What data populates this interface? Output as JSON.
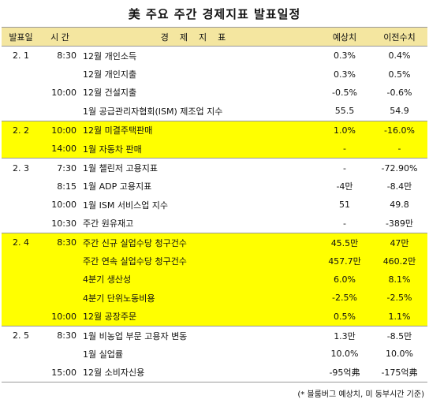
{
  "title": "美 주요 주간 경제지표 발표일정",
  "headers": {
    "date": "발표일",
    "time": "시  간",
    "indicator": "경제지표",
    "expected": "예상치",
    "previous": "이전수치"
  },
  "rows": [
    {
      "date": "2. 1",
      "time": "8:30",
      "indicator": "12월 개인소득",
      "expected": "0.3%",
      "previous": "0.4%",
      "highlight": false,
      "group_start": true
    },
    {
      "date": "",
      "time": "",
      "indicator": "12월 개인지출",
      "expected": "0.3%",
      "previous": "0.5%",
      "highlight": false,
      "group_start": false
    },
    {
      "date": "",
      "time": "10:00",
      "indicator": "12월 건설지출",
      "expected": "-0.5%",
      "previous": "-0.6%",
      "highlight": false,
      "group_start": false
    },
    {
      "date": "",
      "time": "",
      "indicator": "1월 공급관리자협회(ISM) 제조업 지수",
      "expected": "55.5",
      "previous": "54.9",
      "highlight": false,
      "group_start": false
    },
    {
      "date": "2. 2",
      "time": "10:00",
      "indicator": "12월 미결주택판매",
      "expected": "1.0%",
      "previous": "-16.0%",
      "highlight": true,
      "group_start": true
    },
    {
      "date": "",
      "time": "14:00",
      "indicator": "1월 자동차 판매",
      "expected": "-",
      "previous": "-",
      "highlight": true,
      "group_start": false
    },
    {
      "date": "2. 3",
      "time": "7:30",
      "indicator": "1월 챌린저 고용지표",
      "expected": "-",
      "previous": "-72.90%",
      "highlight": false,
      "group_start": true
    },
    {
      "date": "",
      "time": "8:15",
      "indicator": "1월 ADP 고용지표",
      "expected": "-4만",
      "previous": "-8.4만",
      "highlight": false,
      "group_start": false
    },
    {
      "date": "",
      "time": "10:00",
      "indicator": "1월 ISM 서비스업 지수",
      "expected": "51",
      "previous": "49.8",
      "highlight": false,
      "group_start": false
    },
    {
      "date": "",
      "time": "10:30",
      "indicator": "주간 원유재고",
      "expected": "-",
      "previous": "-389만",
      "highlight": false,
      "group_start": false
    },
    {
      "date": "2. 4",
      "time": "8:30",
      "indicator": "주간 신규 실업수당 청구건수",
      "expected": "45.5만",
      "previous": "47만",
      "highlight": true,
      "group_start": true
    },
    {
      "date": "",
      "time": "",
      "indicator": "주간 연속 실업수당 청구건수",
      "expected": "457.7만",
      "previous": "460.2만",
      "highlight": true,
      "group_start": false
    },
    {
      "date": "",
      "time": "",
      "indicator": "4분기 생산성",
      "expected": "6.0%",
      "previous": "8.1%",
      "highlight": true,
      "group_start": false
    },
    {
      "date": "",
      "time": "",
      "indicator": "4분기 단위노동비용",
      "expected": "-2.5%",
      "previous": "-2.5%",
      "highlight": true,
      "group_start": false
    },
    {
      "date": "",
      "time": "10:00",
      "indicator": "12월 공장주문",
      "expected": "0.5%",
      "previous": "1.1%",
      "highlight": true,
      "group_start": false
    },
    {
      "date": "2. 5",
      "time": "8:30",
      "indicator": "1월 비농업 부문 고용자 변동",
      "expected": "1.3만",
      "previous": "-8.5만",
      "highlight": false,
      "group_start": true
    },
    {
      "date": "",
      "time": "",
      "indicator": "1월 실업률",
      "expected": "10.0%",
      "previous": "10.0%",
      "highlight": false,
      "group_start": false
    },
    {
      "date": "",
      "time": "15:00",
      "indicator": "12월 소비자신용",
      "expected": "-95억弗",
      "previous": "-175억弗",
      "highlight": false,
      "group_start": false
    }
  ],
  "footnote": "(* 블룸버그 예상치, 미 동부시간 기준)"
}
